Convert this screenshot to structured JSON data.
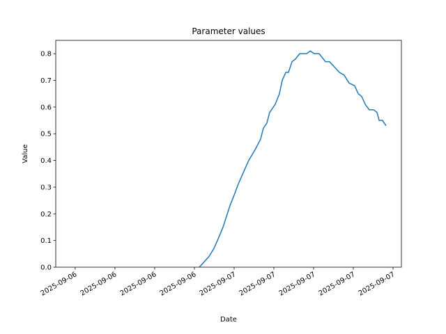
{
  "chart_data": {
    "type": "line",
    "title": "Parameter values",
    "x_label": "Date",
    "y_label": "Value",
    "x": [
      21.37,
      22.1,
      22.47,
      22.74,
      23.16,
      23.68,
      24.0,
      24.3,
      24.74,
      25.1,
      25.58,
      26.0,
      26.2,
      26.47,
      26.68,
      27.1,
      27.42,
      27.63,
      27.9,
      28.1,
      28.37,
      28.63,
      28.95,
      29.16,
      29.47,
      29.74,
      30.05,
      30.42,
      30.58,
      30.9,
      31.2,
      31.58,
      31.95,
      32.3,
      32.68,
      33.1,
      33.37,
      33.63,
      33.9,
      34.2,
      34.53,
      34.79,
      34.95,
      35.2,
      35.47
    ],
    "series": [
      {
        "name": "Value",
        "color": "#1f77b4",
        "values": [
          0,
          0.04,
          0.07,
          0.1,
          0.15,
          0.23,
          0.27,
          0.31,
          0.36,
          0.4,
          0.44,
          0.48,
          0.52,
          0.54,
          0.58,
          0.61,
          0.65,
          0.7,
          0.73,
          0.73,
          0.77,
          0.78,
          0.8,
          0.8,
          0.8,
          0.81,
          0.8,
          0.8,
          0.79,
          0.77,
          0.77,
          0.75,
          0.73,
          0.72,
          0.69,
          0.68,
          0.65,
          0.64,
          0.61,
          0.59,
          0.59,
          0.58,
          0.55,
          0.55,
          0.53
        ]
      }
    ],
    "xlim": [
      10.53,
      36.63
    ],
    "xticks": [
      {
        "value": 12,
        "label": "2025-09-06"
      },
      {
        "value": 15,
        "label": "2025-09-06"
      },
      {
        "value": 18,
        "label": "2025-09-06"
      },
      {
        "value": 21,
        "label": "2025-09-06"
      },
      {
        "value": 24,
        "label": "2025-09-07"
      },
      {
        "value": 27,
        "label": "2025-09-07"
      },
      {
        "value": 30,
        "label": "2025-09-07"
      },
      {
        "value": 33,
        "label": "2025-09-07"
      },
      {
        "value": 36,
        "label": "2025-09-07"
      }
    ],
    "ylim": [
      0,
      0.85
    ],
    "yticks": [
      {
        "value": 0,
        "label": "0.0"
      },
      0.1,
      0.2,
      0.3,
      0.4,
      0.5,
      0.6,
      0.7,
      0.8
    ]
  }
}
